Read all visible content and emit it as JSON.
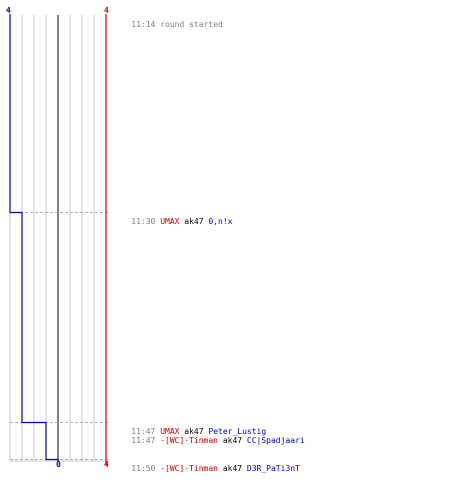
{
  "scoreboard": {
    "blue_top": "4",
    "red_top": "4",
    "blue_bottom": "0",
    "red_bottom": "4",
    "blue_color": "#0000cc",
    "red_color": "#dd0000",
    "blue_team_score_steps": [
      4,
      3,
      2,
      1,
      0
    ],
    "red_team_score_steps": [
      4
    ]
  },
  "events": [
    {
      "time": "11:14",
      "text": "round started"
    },
    {
      "time": "11:30",
      "killer": "UMAX",
      "weapon": "ak47",
      "victim": "0,n!x"
    },
    {
      "time": "11:47",
      "killer": "UMAX",
      "weapon": "ak47",
      "victim": "Peter_Lustig"
    },
    {
      "time": "11:47",
      "killer": "-[WC]-Tinman",
      "weapon": "ak47",
      "victim": "CC|Spadjaari"
    },
    {
      "time": "11:50",
      "killer": "-[WC]-Tinman",
      "weapon": "ak47",
      "victim": "D3R_PaTi3nT"
    }
  ]
}
